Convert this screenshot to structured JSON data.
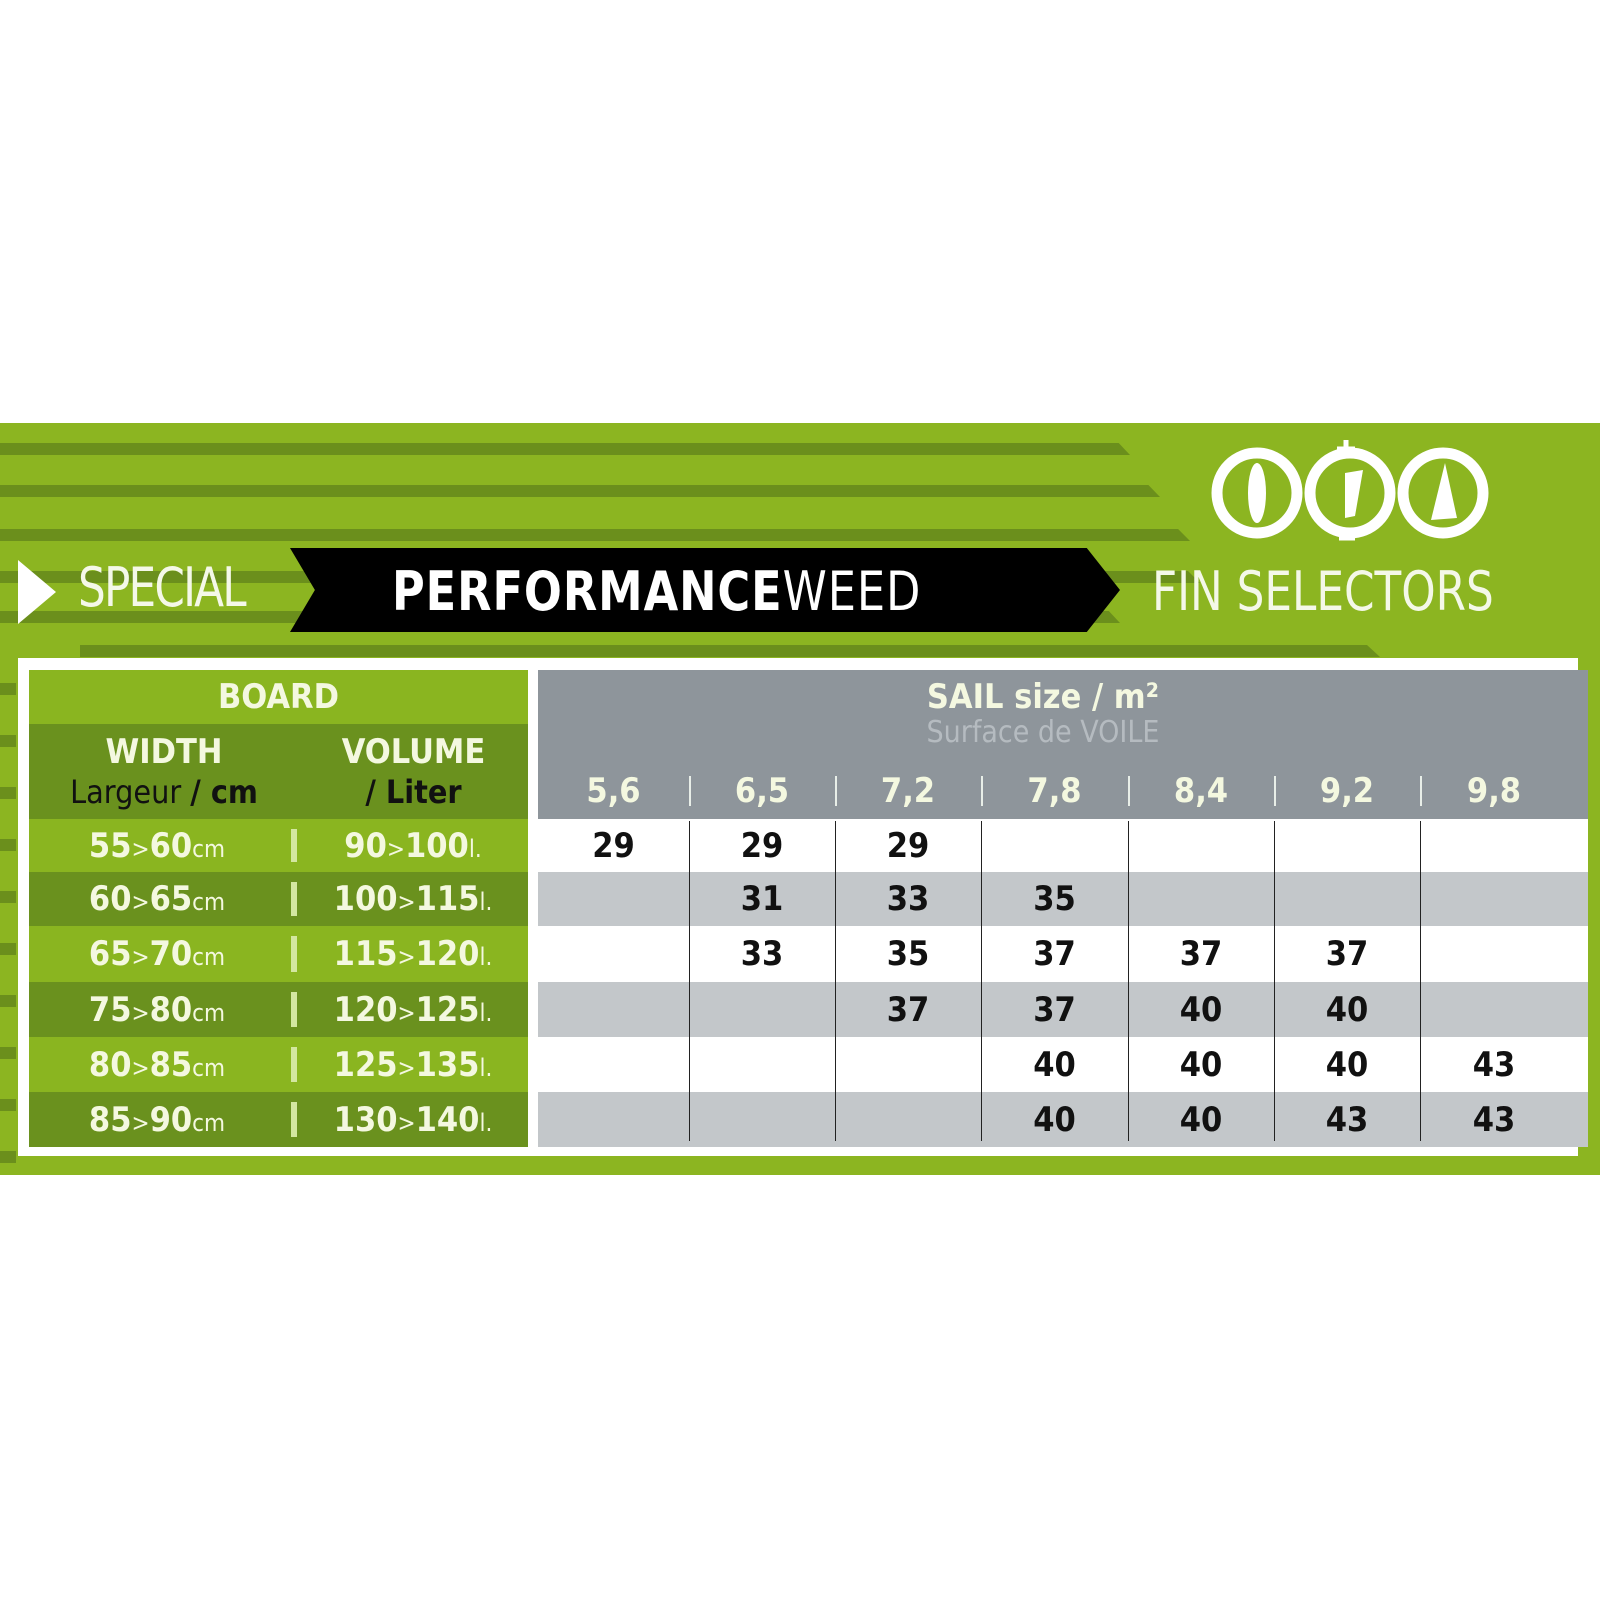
{
  "header": {
    "special": "SPECIAL",
    "product_bold": "PERFORMANCE",
    "product_light": "WEED",
    "fin_selectors": "FIN SELECTORS",
    "logo_icon": "board-fin-sail-cycle-icon"
  },
  "board": {
    "title": "BOARD",
    "width_label": "WIDTH",
    "width_sub": "Largeur",
    "width_unit": "/ cm",
    "volume_label": "VOLUME",
    "volume_unit": "/ Liter",
    "rows": [
      {
        "w_from": "55",
        "w_to": "60",
        "w_unit": "cm",
        "v_from": "90",
        "v_to": "100",
        "v_unit": "l."
      },
      {
        "w_from": "60",
        "w_to": "65",
        "w_unit": "cm",
        "v_from": "100",
        "v_to": "115",
        "v_unit": "l."
      },
      {
        "w_from": "65",
        "w_to": "70",
        "w_unit": "cm",
        "v_from": "115",
        "v_to": "120",
        "v_unit": "l."
      },
      {
        "w_from": "75",
        "w_to": "80",
        "w_unit": "cm",
        "v_from": "120",
        "v_to": "125",
        "v_unit": "l."
      },
      {
        "w_from": "80",
        "w_to": "85",
        "w_unit": "cm",
        "v_from": "125",
        "v_to": "135",
        "v_unit": "l."
      },
      {
        "w_from": "85",
        "w_to": "90",
        "w_unit": "cm",
        "v_from": "130",
        "v_to": "140",
        "v_unit": "l."
      }
    ]
  },
  "sail": {
    "title": "SAIL size / m²",
    "subtitle": "Surface de VOILE",
    "sizes": [
      "5,6",
      "6,5",
      "7,2",
      "7,8",
      "8,4",
      "9,2",
      "9,8"
    ],
    "fins": [
      [
        "29",
        "29",
        "29",
        "",
        "",
        "",
        ""
      ],
      [
        "",
        "31",
        "33",
        "35",
        "",
        "",
        ""
      ],
      [
        "",
        "33",
        "35",
        "37",
        "37",
        "37",
        ""
      ],
      [
        "",
        "",
        "37",
        "37",
        "40",
        "40",
        ""
      ],
      [
        "",
        "",
        "",
        "40",
        "40",
        "40",
        "43"
      ],
      [
        "",
        "",
        "",
        "40",
        "40",
        "43",
        "43"
      ]
    ]
  },
  "colors": {
    "green": "#8cb521",
    "dark_green": "#6a911e",
    "gray_header": "#8e959b",
    "gray_row": "#c3c7ca",
    "black": "#000000"
  }
}
